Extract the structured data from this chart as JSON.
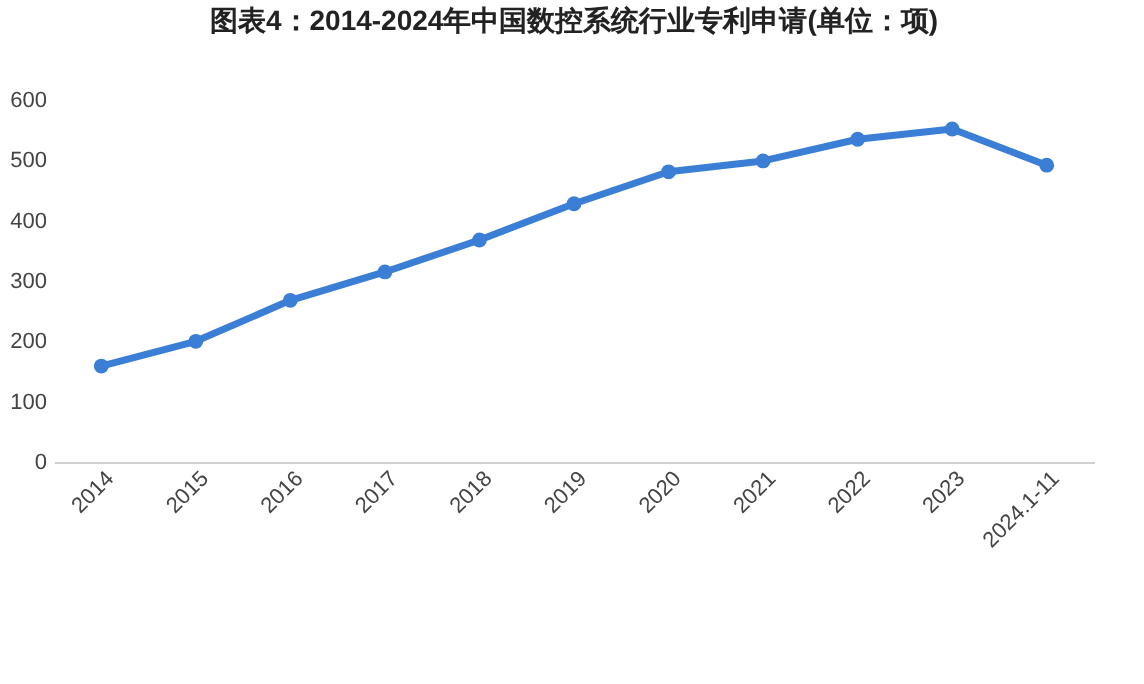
{
  "chart_data": {
    "type": "line",
    "title": "图表4：2014-2024年中国数控系统行业专利申请(单位：项)",
    "categories": [
      "2014",
      "2015",
      "2016",
      "2017",
      "2018",
      "2019",
      "2020",
      "2021",
      "2022",
      "2023",
      "2024.1-11"
    ],
    "series": [
      {
        "color": "#3a7fd5",
        "values": [
          159,
          200,
          268,
          315,
          368,
          428,
          481,
          499,
          535,
          552,
          492
        ]
      }
    ],
    "ylim": [
      0,
      600
    ],
    "yticks": [
      0,
      100,
      200,
      300,
      400,
      500,
      600
    ],
    "grid": false,
    "legend": false,
    "marker": "circle",
    "line_style": "solid"
  }
}
